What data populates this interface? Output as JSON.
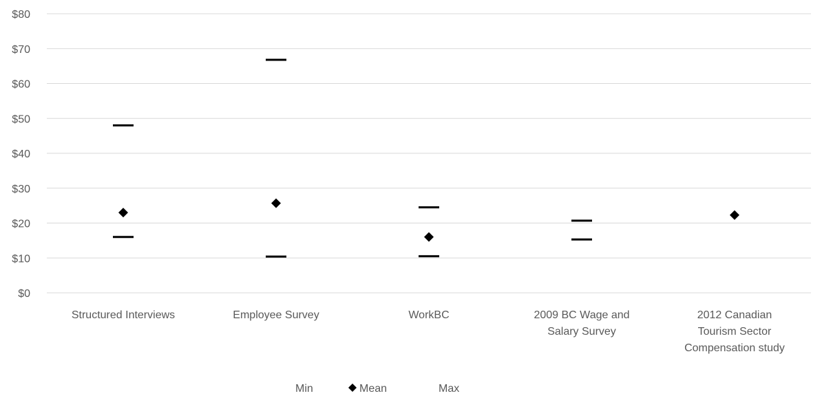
{
  "chart_data": {
    "type": "scatter",
    "categories": [
      "Structured Interviews",
      "Employee Survey",
      "WorkBC",
      "2009 BC Wage and Salary Survey",
      "2012 Canadian Tourism Sector Compensation study"
    ],
    "category_lines": [
      [
        "Structured Interviews"
      ],
      [
        "Employee Survey"
      ],
      [
        "WorkBC"
      ],
      [
        "2009 BC Wage and",
        "Salary Survey"
      ],
      [
        "2012 Canadian",
        "Tourism Sector",
        "Compensation study"
      ]
    ],
    "series": [
      {
        "name": "Min",
        "marker": "dash",
        "values": [
          16,
          10.4,
          10.5,
          15.3,
          null
        ]
      },
      {
        "name": "Mean",
        "marker": "diamond",
        "values": [
          23,
          25.7,
          16,
          null,
          22.3
        ]
      },
      {
        "name": "Max",
        "marker": "dash",
        "values": [
          48,
          66.8,
          24.5,
          20.7,
          null
        ]
      }
    ],
    "ylim": [
      0,
      80
    ],
    "ytick_step": 10,
    "ytick_labels": [
      "$0",
      "$10",
      "$20",
      "$30",
      "$40",
      "$50",
      "$60",
      "$70",
      "$80"
    ],
    "grid": true,
    "legend_position": "bottom",
    "marker_color": "#000000",
    "grid_color": "#d9d9d9",
    "text_color": "#595959"
  }
}
